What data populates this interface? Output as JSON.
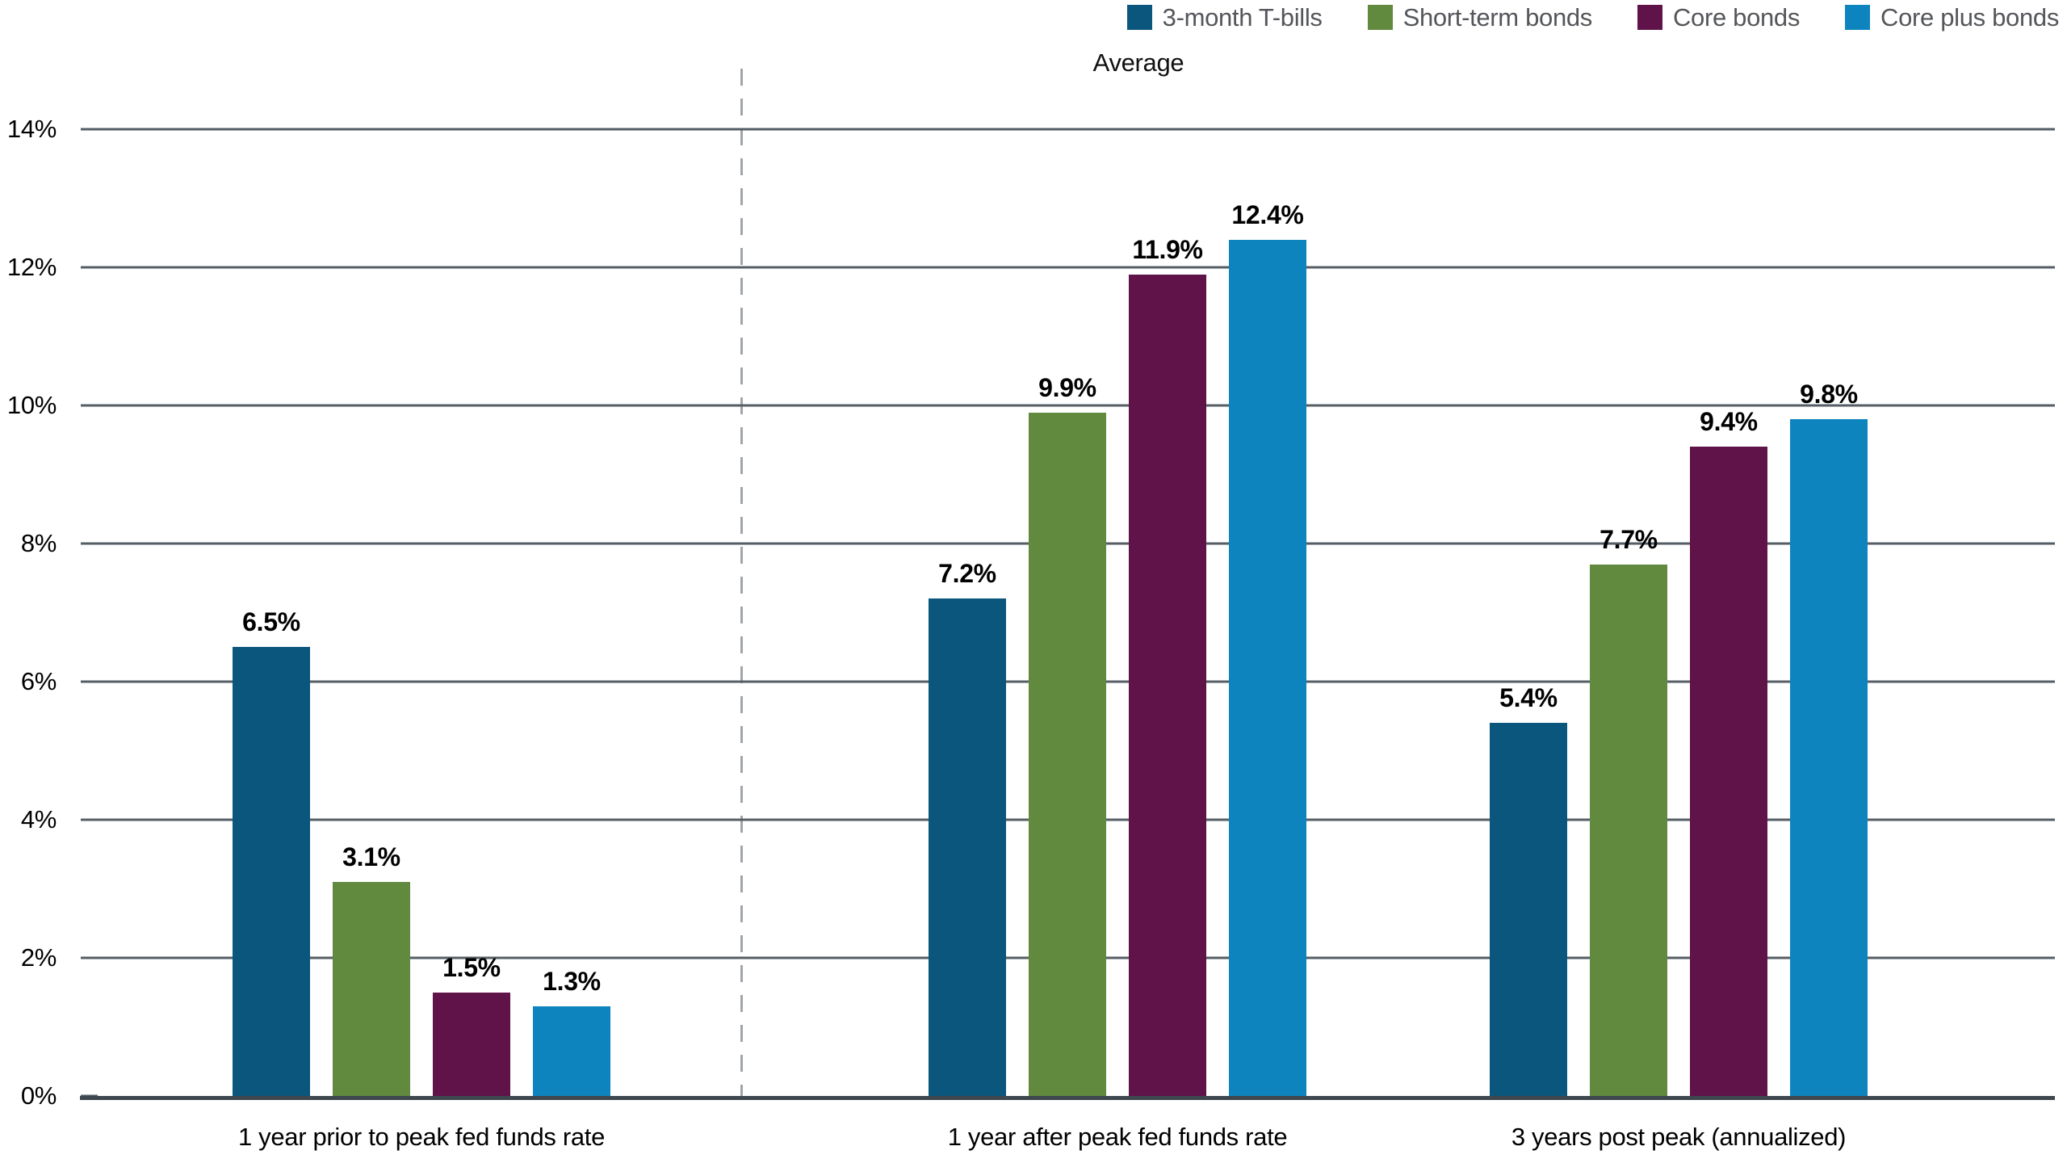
{
  "chart_data": {
    "type": "bar",
    "title": "Average",
    "categories": [
      "1 year prior to peak fed funds rate",
      "1 year after peak fed funds rate",
      "3 years post peak (annualized)"
    ],
    "series": [
      {
        "name": "3-month T-bills",
        "color": "#0B567C",
        "values": [
          6.5,
          7.2,
          5.4
        ],
        "labels": [
          "6.5%",
          "7.2%",
          "5.4%"
        ]
      },
      {
        "name": "Short-term bonds",
        "color": "#628A3E",
        "values": [
          3.1,
          9.9,
          7.7
        ],
        "labels": [
          "3.1%",
          "9.9%",
          "7.7%"
        ]
      },
      {
        "name": "Core bonds",
        "color": "#601349",
        "values": [
          1.5,
          11.9,
          9.4
        ],
        "labels": [
          "1.5%",
          "11.9%",
          "9.4%"
        ]
      },
      {
        "name": "Core plus bonds",
        "color": "#0D84BE",
        "values": [
          1.3,
          12.4,
          9.8
        ],
        "labels": [
          "1.3%",
          "12.4%",
          "9.8%"
        ]
      }
    ],
    "y_axis": {
      "min": 0,
      "max": 14,
      "ticks": [
        {
          "label": "0%",
          "value": 0
        },
        {
          "label": "2%",
          "value": 2
        },
        {
          "label": "4%",
          "value": 4
        },
        {
          "label": "6%",
          "value": 6
        },
        {
          "label": "8%",
          "value": 8
        },
        {
          "label": "10%",
          "value": 10
        },
        {
          "label": "12%",
          "value": 12
        },
        {
          "label": "14%",
          "value": 14
        }
      ]
    },
    "grid": "horizontal",
    "legend_position": "top-right",
    "separator": {
      "type": "dashed-vertical-line",
      "between_categories": [
        "1 year prior to peak fed funds rate",
        "1 year after peak fed funds rate"
      ]
    }
  },
  "style_colors": {
    "gridline": "#555E64",
    "axis_line": "#3E474E",
    "separator_line": "#A0A6AB",
    "legend_text": "#54565A",
    "axis_label_text": "#000000",
    "value_label_text": "#000000"
  }
}
